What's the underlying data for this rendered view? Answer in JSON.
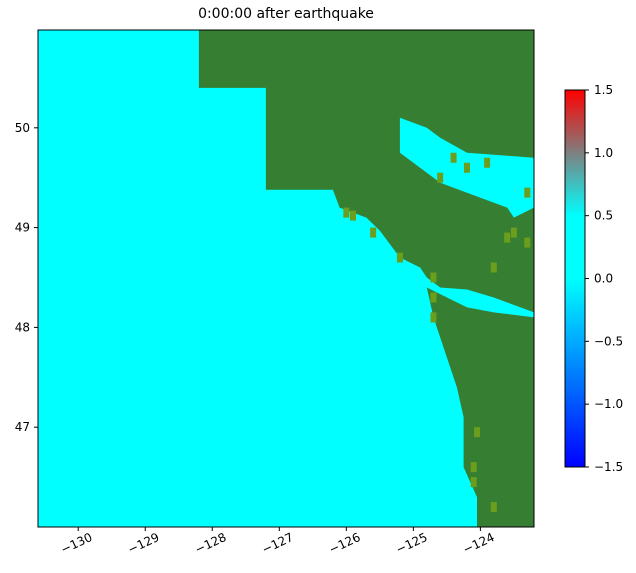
{
  "title": "0:00:00 after earthquake",
  "map": {
    "extent": {
      "lon": [
        -130.6,
        -123.2
      ],
      "lat": [
        46.0,
        50.98
      ]
    },
    "x_ticks": [
      {
        "value": -130,
        "label": "−130"
      },
      {
        "value": -129,
        "label": "−129"
      },
      {
        "value": -128,
        "label": "−128"
      },
      {
        "value": -127,
        "label": "−127"
      },
      {
        "value": -126,
        "label": "−126"
      },
      {
        "value": -125,
        "label": "−125"
      },
      {
        "value": -124,
        "label": "−124"
      }
    ],
    "y_ticks": [
      {
        "value": 47,
        "label": "47"
      },
      {
        "value": 48,
        "label": "48"
      },
      {
        "value": 49,
        "label": "49"
      },
      {
        "value": 50,
        "label": "50"
      }
    ],
    "colors": {
      "ocean": "#00ffff",
      "land": "#367e32",
      "shore": "#6b9e1d"
    },
    "coastline": [
      [
        -128.2,
        50.98
      ],
      [
        -128.2,
        50.4
      ],
      [
        -127.2,
        50.4
      ],
      [
        -127.2,
        49.38
      ],
      [
        -126.2,
        49.38
      ],
      [
        -126.1,
        49.2
      ],
      [
        -125.7,
        49.1
      ],
      [
        -125.5,
        48.97
      ],
      [
        -125.2,
        48.7
      ],
      [
        -124.9,
        48.6
      ],
      [
        -124.8,
        48.5
      ],
      [
        -124.6,
        48.4
      ],
      [
        -124.2,
        48.38
      ],
      [
        -123.8,
        48.3
      ],
      [
        -123.4,
        48.2
      ],
      [
        -123.2,
        48.15
      ],
      [
        -123.2,
        49.2
      ],
      [
        -123.5,
        49.1
      ],
      [
        -123.6,
        49.2
      ],
      [
        -124.0,
        49.3
      ],
      [
        -124.6,
        49.45
      ],
      [
        -124.9,
        49.6
      ],
      [
        -125.2,
        49.75
      ],
      [
        -125.2,
        50.1
      ],
      [
        -124.8,
        50.0
      ],
      [
        -124.6,
        49.9
      ],
      [
        -124.2,
        49.75
      ],
      [
        -123.2,
        49.7
      ],
      [
        -123.2,
        50.98
      ]
    ],
    "olympic": [
      [
        -124.8,
        48.4
      ],
      [
        -124.2,
        48.2
      ],
      [
        -123.8,
        48.15
      ],
      [
        -123.2,
        48.1
      ],
      [
        -123.2,
        46.0
      ],
      [
        -124.05,
        46.0
      ],
      [
        -124.05,
        46.3
      ],
      [
        -124.25,
        46.6
      ],
      [
        -124.25,
        47.1
      ],
      [
        -124.35,
        47.4
      ],
      [
        -124.55,
        47.8
      ],
      [
        -124.7,
        48.1
      ],
      [
        -124.8,
        48.4
      ]
    ],
    "shore_cells": [
      [
        -126.0,
        49.15
      ],
      [
        -125.9,
        49.12
      ],
      [
        -125.6,
        48.95
      ],
      [
        -125.2,
        48.7
      ],
      [
        -124.7,
        48.5
      ],
      [
        -124.4,
        49.7
      ],
      [
        -124.6,
        49.5
      ],
      [
        -124.2,
        49.6
      ],
      [
        -123.9,
        49.65
      ],
      [
        -123.3,
        49.35
      ],
      [
        -123.5,
        48.95
      ],
      [
        -123.3,
        48.85
      ],
      [
        -123.6,
        48.9
      ],
      [
        -123.8,
        48.6
      ],
      [
        -124.7,
        48.3
      ],
      [
        -124.7,
        48.1
      ],
      [
        -124.05,
        46.95
      ],
      [
        -124.1,
        46.6
      ],
      [
        -124.1,
        46.45
      ],
      [
        -123.8,
        46.2
      ]
    ]
  },
  "colorbar": {
    "vmin": -1.5,
    "vmax": 1.5,
    "stops": [
      {
        "value": -1.5,
        "color": "#0000ff"
      },
      {
        "value": 0.0,
        "color": "#00ffff"
      },
      {
        "value": 0.5,
        "color": "#00ffff"
      },
      {
        "value": 1.5,
        "color": "#ff0000"
      }
    ],
    "ticks": [
      {
        "value": 1.5,
        "label": "1.5"
      },
      {
        "value": 1.0,
        "label": "1.0"
      },
      {
        "value": 0.5,
        "label": "0.5"
      },
      {
        "value": 0.0,
        "label": "0.0"
      },
      {
        "value": -0.5,
        "label": "−0.5"
      },
      {
        "value": -1.0,
        "label": "−1.0"
      },
      {
        "value": -1.5,
        "label": "−1.5"
      }
    ]
  }
}
